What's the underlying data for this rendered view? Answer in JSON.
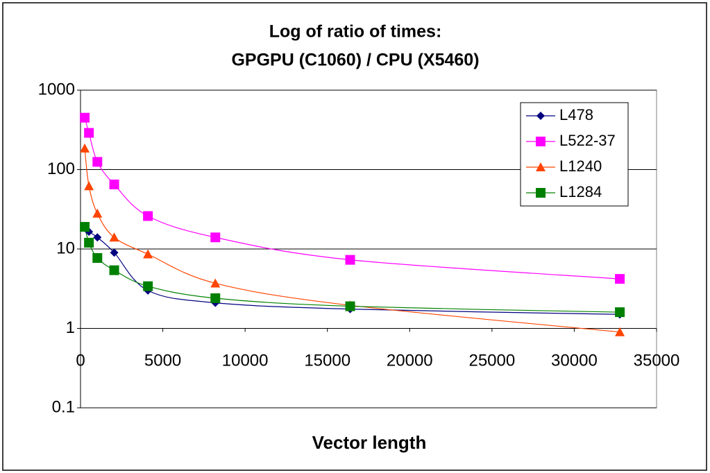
{
  "chart_data": {
    "type": "line",
    "title": [
      "Log of ratio of times:",
      "GPGPU (C1060) / CPU (X5460)"
    ],
    "x_label": "Vector length",
    "x": [
      256,
      512,
      1024,
      2048,
      4096,
      8192,
      16384,
      32768
    ],
    "series": [
      {
        "name": "L478",
        "color": "#000080",
        "marker": "diamond",
        "values": [
          19,
          16.5,
          14,
          9,
          3.0,
          2.1,
          1.75,
          1.5
        ]
      },
      {
        "name": "L522-37",
        "color": "#ff00ff",
        "marker": "square",
        "values": [
          450,
          290,
          125,
          65,
          26,
          14,
          7.3,
          4.2
        ]
      },
      {
        "name": "L1240",
        "color": "#ff4500",
        "marker": "triangle",
        "values": [
          185,
          62,
          28,
          14,
          8.6,
          3.7,
          1.95,
          0.9
        ]
      },
      {
        "name": "L1284",
        "color": "#008000",
        "marker": "square",
        "values": [
          19,
          12,
          7.7,
          5.4,
          3.4,
          2.4,
          1.9,
          1.6
        ]
      }
    ],
    "xlim": [
      0,
      35000
    ],
    "xticks": [
      0,
      5000,
      10000,
      15000,
      20000,
      25000,
      30000,
      35000
    ],
    "ylim": [
      0.1,
      1000
    ],
    "yticks": [
      0.1,
      1,
      10,
      100,
      1000
    ],
    "ylog": true,
    "xaxis_crosses": 1,
    "grid": true,
    "smooth": true,
    "legend": "upper right"
  }
}
